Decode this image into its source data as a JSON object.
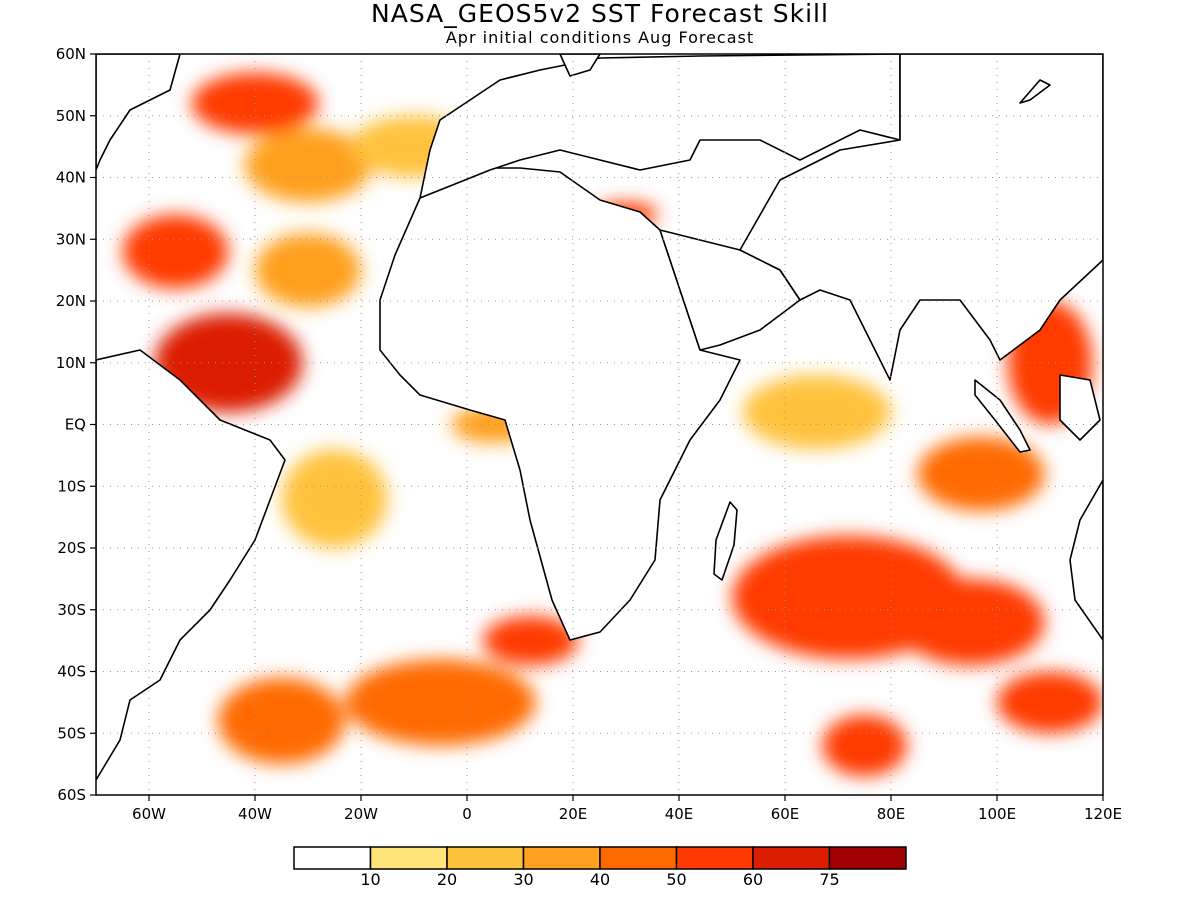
{
  "title": "NASA_GEOS5v2 SST Forecast Skill",
  "subtitle": "Apr initial conditions  Aug Forecast",
  "map": {
    "lon_range": [
      -70,
      120
    ],
    "lat_range": [
      -60,
      60
    ],
    "lat_ticks": [
      {
        "lat": 60,
        "label": "60N"
      },
      {
        "lat": 50,
        "label": "50N"
      },
      {
        "lat": 40,
        "label": "40N"
      },
      {
        "lat": 30,
        "label": "30N"
      },
      {
        "lat": 20,
        "label": "20N"
      },
      {
        "lat": 10,
        "label": "10N"
      },
      {
        "lat": 0,
        "label": "EQ"
      },
      {
        "lat": -10,
        "label": "10S"
      },
      {
        "lat": -20,
        "label": "20S"
      },
      {
        "lat": -30,
        "label": "30S"
      },
      {
        "lat": -40,
        "label": "40S"
      },
      {
        "lat": -50,
        "label": "50S"
      },
      {
        "lat": -60,
        "label": "60S"
      }
    ],
    "lon_ticks": [
      {
        "lon": -60,
        "label": "60W"
      },
      {
        "lon": -40,
        "label": "40W"
      },
      {
        "lon": -20,
        "label": "20W"
      },
      {
        "lon": 0,
        "label": "0"
      },
      {
        "lon": 20,
        "label": "20E"
      },
      {
        "lon": 40,
        "label": "40E"
      },
      {
        "lon": 60,
        "label": "60E"
      },
      {
        "lon": 80,
        "label": "80E"
      },
      {
        "lon": 100,
        "label": "100E"
      },
      {
        "lon": 120,
        "label": "120E"
      }
    ],
    "gridlines": true
  },
  "colorbar": {
    "colors": [
      "#ffffff",
      "#ffe478",
      "#ffc23c",
      "#ffa01e",
      "#ff6a00",
      "#ff3a00",
      "#dc1e00",
      "#a00000"
    ],
    "labels": [
      "10",
      "20",
      "30",
      "40",
      "50",
      "60",
      "75"
    ]
  },
  "skill_regions": [
    {
      "lon": -45,
      "lat": 10,
      "rx": 14,
      "ry": 8,
      "level": 6
    },
    {
      "lon": -55,
      "lat": 28,
      "rx": 10,
      "ry": 6,
      "level": 5
    },
    {
      "lon": -40,
      "lat": 52,
      "rx": 12,
      "ry": 5,
      "level": 5
    },
    {
      "lon": -30,
      "lat": 42,
      "rx": 12,
      "ry": 6,
      "level": 3
    },
    {
      "lon": -10,
      "lat": 45,
      "rx": 12,
      "ry": 5,
      "level": 2
    },
    {
      "lon": -30,
      "lat": 25,
      "rx": 10,
      "ry": 6,
      "level": 3
    },
    {
      "lon": 5,
      "lat": 0,
      "rx": 8,
      "ry": 3,
      "level": 3
    },
    {
      "lon": -25,
      "lat": -12,
      "rx": 10,
      "ry": 8,
      "level": 2
    },
    {
      "lon": 12,
      "lat": -35,
      "rx": 9,
      "ry": 4,
      "level": 5
    },
    {
      "lon": -5,
      "lat": -45,
      "rx": 18,
      "ry": 7,
      "level": 4
    },
    {
      "lon": -35,
      "lat": -48,
      "rx": 12,
      "ry": 7,
      "level": 4
    },
    {
      "lon": 72,
      "lat": -28,
      "rx": 22,
      "ry": 10,
      "level": 5
    },
    {
      "lon": 95,
      "lat": -32,
      "rx": 14,
      "ry": 7,
      "level": 5
    },
    {
      "lon": 110,
      "lat": -45,
      "rx": 10,
      "ry": 5,
      "level": 5
    },
    {
      "lon": 75,
      "lat": -52,
      "rx": 8,
      "ry": 5,
      "level": 5
    },
    {
      "lon": 110,
      "lat": 10,
      "rx": 8,
      "ry": 10,
      "level": 5
    },
    {
      "lon": 97,
      "lat": -8,
      "rx": 12,
      "ry": 6,
      "level": 4
    },
    {
      "lon": 66,
      "lat": 2,
      "rx": 14,
      "ry": 6,
      "level": 2
    },
    {
      "lon": 30,
      "lat": 34,
      "rx": 6,
      "ry": 2,
      "level": 5
    }
  ]
}
